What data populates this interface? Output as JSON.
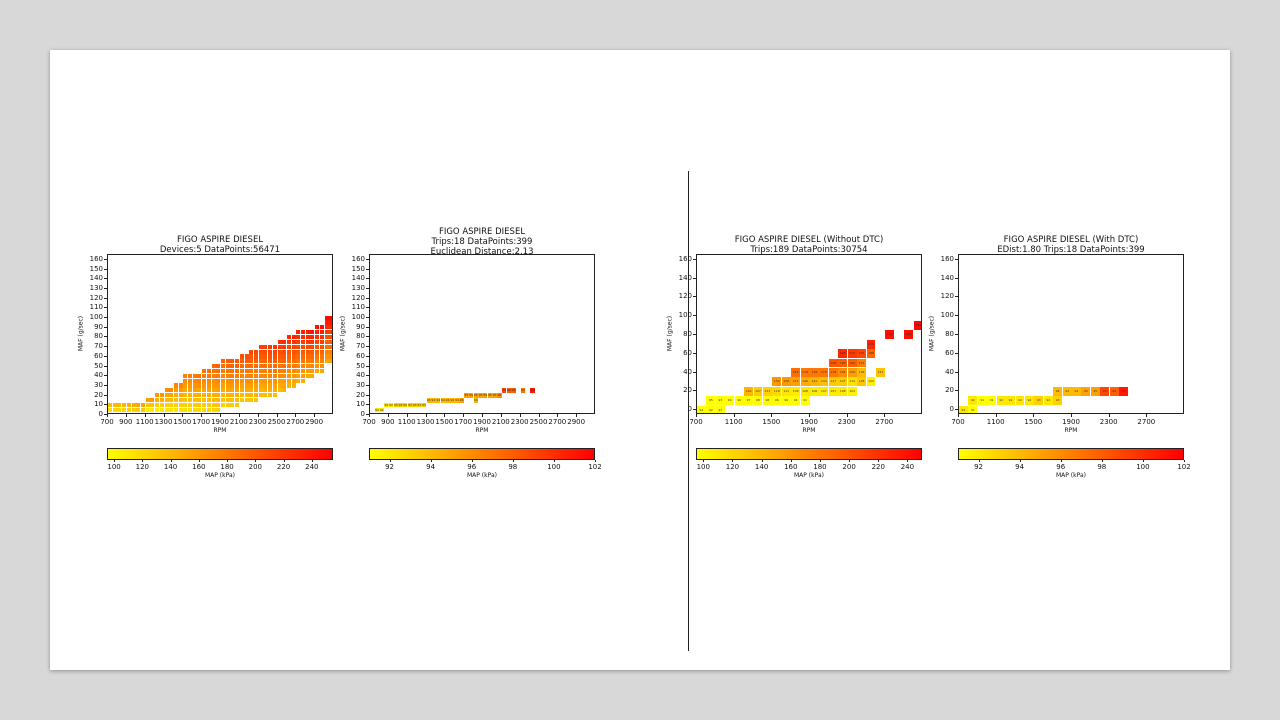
{
  "chart_data": [
    {
      "type": "heatmap",
      "title_lines": [
        "FIGO ASPIRE DIESEL",
        "Devices:5 DataPoints:56471"
      ],
      "xlabel": "RPM",
      "ylabel": "MAF (g/sec)",
      "xlim": [
        700,
        3100
      ],
      "ylim": [
        0,
        165
      ],
      "xticks": [
        700,
        900,
        1100,
        1300,
        1500,
        1700,
        1900,
        2100,
        2300,
        2500,
        2700,
        2900
      ],
      "yticks": [
        0,
        10,
        20,
        30,
        40,
        50,
        60,
        70,
        80,
        90,
        100,
        110,
        120,
        130,
        140,
        150,
        160
      ],
      "colorbar": {
        "label": "MAP (kPa)",
        "range": [
          95,
          255
        ],
        "ticks": [
          100,
          120,
          140,
          160,
          180,
          200,
          220,
          240
        ]
      },
      "cell_size": [
        50,
        5
      ],
      "pattern": "dense",
      "columns": [
        {
          "x": 700,
          "ymin": 0,
          "ymax": 10
        },
        {
          "x": 800,
          "ymin": 0,
          "ymax": 10
        },
        {
          "x": 900,
          "ymin": 0,
          "ymax": 10
        },
        {
          "x": 1000,
          "ymin": 0,
          "ymax": 10
        },
        {
          "x": 1100,
          "ymin": 5,
          "ymax": 15
        },
        {
          "x": 1200,
          "ymin": 5,
          "ymax": 20
        },
        {
          "x": 1300,
          "ymin": 5,
          "ymax": 25
        },
        {
          "x": 1400,
          "ymin": 5,
          "ymax": 30
        },
        {
          "x": 1500,
          "ymin": 5,
          "ymax": 40
        },
        {
          "x": 1600,
          "ymin": 5,
          "ymax": 40
        },
        {
          "x": 1700,
          "ymin": 5,
          "ymax": 45
        },
        {
          "x": 1800,
          "ymin": 5,
          "ymax": 50
        },
        {
          "x": 1900,
          "ymin": 10,
          "ymax": 55
        },
        {
          "x": 2000,
          "ymin": 10,
          "ymax": 55
        },
        {
          "x": 2100,
          "ymin": 15,
          "ymax": 60
        },
        {
          "x": 2200,
          "ymin": 15,
          "ymax": 65
        },
        {
          "x": 2300,
          "ymin": 20,
          "ymax": 70
        },
        {
          "x": 2400,
          "ymin": 20,
          "ymax": 70
        },
        {
          "x": 2500,
          "ymin": 25,
          "ymax": 75
        },
        {
          "x": 2600,
          "ymin": 30,
          "ymax": 80
        },
        {
          "x": 2700,
          "ymin": 35,
          "ymax": 85
        },
        {
          "x": 2800,
          "ymin": 40,
          "ymax": 85
        },
        {
          "x": 2900,
          "ymin": 45,
          "ymax": 90
        },
        {
          "x": 3000,
          "ymin": 55,
          "ymax": 100
        }
      ]
    },
    {
      "type": "heatmap",
      "title_lines": [
        "FIGO ASPIRE DIESEL",
        "Trips:18 DataPoints:399",
        "Euclidean Distance:2.13"
      ],
      "xlabel": "RPM",
      "ylabel": "MAF (g/sec)",
      "xlim": [
        700,
        3100
      ],
      "ylim": [
        0,
        165
      ],
      "xticks": [
        700,
        900,
        1100,
        1300,
        1500,
        1700,
        1900,
        2100,
        2300,
        2500,
        2700,
        2900
      ],
      "yticks": [
        0,
        10,
        20,
        30,
        40,
        50,
        60,
        70,
        80,
        90,
        100,
        110,
        120,
        130,
        140,
        150,
        160
      ],
      "colorbar": {
        "label": "MAP (kPa)",
        "range": [
          91,
          102
        ],
        "ticks": [
          92,
          94,
          96,
          98,
          100,
          102
        ]
      },
      "cell_size": [
        50,
        5
      ],
      "pattern": "points",
      "points": [
        {
          "x": 750,
          "y": 5,
          "v": 92
        },
        {
          "x": 800,
          "y": 5,
          "v": 92
        },
        {
          "x": 850,
          "y": 10,
          "v": 92
        },
        {
          "x": 900,
          "y": 10,
          "v": 92
        },
        {
          "x": 950,
          "y": 10,
          "v": 93
        },
        {
          "x": 1000,
          "y": 10,
          "v": 93
        },
        {
          "x": 1050,
          "y": 10,
          "v": 93
        },
        {
          "x": 1100,
          "y": 10,
          "v": 93
        },
        {
          "x": 1150,
          "y": 10,
          "v": 93
        },
        {
          "x": 1200,
          "y": 10,
          "v": 93
        },
        {
          "x": 1250,
          "y": 10,
          "v": 93
        },
        {
          "x": 1300,
          "y": 15,
          "v": 94
        },
        {
          "x": 1350,
          "y": 15,
          "v": 94
        },
        {
          "x": 1400,
          "y": 15,
          "v": 94
        },
        {
          "x": 1450,
          "y": 15,
          "v": 94
        },
        {
          "x": 1500,
          "y": 15,
          "v": 94
        },
        {
          "x": 1550,
          "y": 15,
          "v": 94
        },
        {
          "x": 1600,
          "y": 15,
          "v": 94
        },
        {
          "x": 1650,
          "y": 15,
          "v": 95
        },
        {
          "x": 1700,
          "y": 20,
          "v": 95
        },
        {
          "x": 1750,
          "y": 20,
          "v": 95
        },
        {
          "x": 1800,
          "y": 15,
          "v": 94
        },
        {
          "x": 1800,
          "y": 20,
          "v": 95
        },
        {
          "x": 1850,
          "y": 20,
          "v": 95
        },
        {
          "x": 1900,
          "y": 20,
          "v": 95
        },
        {
          "x": 1950,
          "y": 20,
          "v": 95
        },
        {
          "x": 2000,
          "y": 20,
          "v": 95
        },
        {
          "x": 2050,
          "y": 20,
          "v": 96
        },
        {
          "x": 2100,
          "y": 25,
          "v": 99
        },
        {
          "x": 2150,
          "y": 25,
          "v": 98
        },
        {
          "x": 2200,
          "y": 25,
          "v": 98
        },
        {
          "x": 2300,
          "y": 25,
          "v": 97
        },
        {
          "x": 2400,
          "y": 25,
          "v": 101
        }
      ]
    },
    {
      "type": "heatmap",
      "title_lines": [
        "FIGO ASPIRE DIESEL (Without DTC)",
        "Trips:189 DataPoints:30754"
      ],
      "xlabel": "RPM",
      "ylabel": "MAF (g/sec)",
      "xlim": [
        700,
        3100
      ],
      "ylim": [
        -5,
        165
      ],
      "xticks": [
        700,
        1100,
        1500,
        1900,
        2300,
        2700
      ],
      "yticks": [
        0,
        20,
        40,
        60,
        80,
        100,
        120,
        140,
        160
      ],
      "colorbar": {
        "label": "MAP (kPa)",
        "range": [
          95,
          250
        ],
        "ticks": [
          100,
          120,
          140,
          160,
          180,
          200,
          220,
          240
        ]
      },
      "cell_size": [
        100,
        10
      ],
      "pattern": "points",
      "points": [
        {
          "x": 700,
          "y": 0,
          "v": 92
        },
        {
          "x": 800,
          "y": 0,
          "v": 92
        },
        {
          "x": 900,
          "y": 0,
          "v": 91
        },
        {
          "x": 800,
          "y": 10,
          "v": 95
        },
        {
          "x": 900,
          "y": 10,
          "v": 93
        },
        {
          "x": 1000,
          "y": 10,
          "v": 94
        },
        {
          "x": 1100,
          "y": 10,
          "v": 96
        },
        {
          "x": 1200,
          "y": 10,
          "v": 97
        },
        {
          "x": 1300,
          "y": 10,
          "v": 98
        },
        {
          "x": 1400,
          "y": 10,
          "v": 98
        },
        {
          "x": 1500,
          "y": 10,
          "v": 96
        },
        {
          "x": 1600,
          "y": 10,
          "v": 96
        },
        {
          "x": 1700,
          "y": 10,
          "v": 94
        },
        {
          "x": 1800,
          "y": 10,
          "v": 91
        },
        {
          "x": 1200,
          "y": 20,
          "v": 140
        },
        {
          "x": 1300,
          "y": 20,
          "v": 127
        },
        {
          "x": 1400,
          "y": 20,
          "v": 123
        },
        {
          "x": 1500,
          "y": 20,
          "v": 118
        },
        {
          "x": 1600,
          "y": 20,
          "v": 111
        },
        {
          "x": 1700,
          "y": 20,
          "v": 108
        },
        {
          "x": 1800,
          "y": 20,
          "v": 108
        },
        {
          "x": 1900,
          "y": 20,
          "v": 106
        },
        {
          "x": 2000,
          "y": 20,
          "v": 107
        },
        {
          "x": 2100,
          "y": 20,
          "v": 107
        },
        {
          "x": 2200,
          "y": 20,
          "v": 108
        },
        {
          "x": 2300,
          "y": 20,
          "v": 103
        },
        {
          "x": 1500,
          "y": 30,
          "v": 159
        },
        {
          "x": 1600,
          "y": 30,
          "v": 158
        },
        {
          "x": 1700,
          "y": 30,
          "v": 152
        },
        {
          "x": 1800,
          "y": 30,
          "v": 146
        },
        {
          "x": 1900,
          "y": 30,
          "v": 141
        },
        {
          "x": 2000,
          "y": 30,
          "v": 134
        },
        {
          "x": 2100,
          "y": 30,
          "v": 127
        },
        {
          "x": 2200,
          "y": 30,
          "v": 127
        },
        {
          "x": 2300,
          "y": 30,
          "v": 113
        },
        {
          "x": 2400,
          "y": 30,
          "v": 128
        },
        {
          "x": 2500,
          "y": 30,
          "v": 104
        },
        {
          "x": 1700,
          "y": 40,
          "v": 183
        },
        {
          "x": 1800,
          "y": 40,
          "v": 178
        },
        {
          "x": 1900,
          "y": 40,
          "v": 178
        },
        {
          "x": 2000,
          "y": 40,
          "v": 178
        },
        {
          "x": 2100,
          "y": 40,
          "v": 178
        },
        {
          "x": 2200,
          "y": 40,
          "v": 165
        },
        {
          "x": 2300,
          "y": 40,
          "v": 156
        },
        {
          "x": 2400,
          "y": 40,
          "v": 136
        },
        {
          "x": 2600,
          "y": 40,
          "v": 131
        },
        {
          "x": 2100,
          "y": 50,
          "v": 198
        },
        {
          "x": 2200,
          "y": 50,
          "v": 194
        },
        {
          "x": 2300,
          "y": 50,
          "v": 192
        },
        {
          "x": 2400,
          "y": 50,
          "v": 172
        },
        {
          "x": 2300,
          "y": 60,
          "v": 215
        },
        {
          "x": 2400,
          "y": 60,
          "v": 207
        },
        {
          "x": 2500,
          "y": 60,
          "v": 188
        },
        {
          "x": 2200,
          "y": 60,
          "v": 226
        },
        {
          "x": 2500,
          "y": 70,
          "v": 228
        },
        {
          "x": 2700,
          "y": 80,
          "v": 240
        },
        {
          "x": 2900,
          "y": 80,
          "v": 242
        },
        {
          "x": 3000,
          "y": 90,
          "v": 246
        }
      ]
    },
    {
      "type": "heatmap",
      "title_lines": [
        "FIGO ASPIRE DIESEL (With DTC)",
        "EDist:1.80 Trips:18 DataPoints:399"
      ],
      "xlabel": "RPM",
      "ylabel": "MAF (g/sec)",
      "xlim": [
        700,
        3100
      ],
      "ylim": [
        -5,
        165
      ],
      "xticks": [
        700,
        1100,
        1500,
        1900,
        2300,
        2700
      ],
      "yticks": [
        0,
        20,
        40,
        60,
        80,
        100,
        120,
        140,
        160
      ],
      "colorbar": {
        "label": "MAP (kPa)",
        "range": [
          91,
          102
        ],
        "ticks": [
          92,
          94,
          96,
          98,
          100,
          102
        ]
      },
      "cell_size": [
        100,
        10
      ],
      "pattern": "points",
      "points": [
        {
          "x": 700,
          "y": 0,
          "v": 92
        },
        {
          "x": 800,
          "y": 0,
          "v": 91
        },
        {
          "x": 800,
          "y": 10,
          "v": 92
        },
        {
          "x": 900,
          "y": 10,
          "v": 91
        },
        {
          "x": 1000,
          "y": 10,
          "v": 91
        },
        {
          "x": 1100,
          "y": 10,
          "v": 92
        },
        {
          "x": 1200,
          "y": 10,
          "v": 92
        },
        {
          "x": 1300,
          "y": 10,
          "v": 92
        },
        {
          "x": 1400,
          "y": 10,
          "v": 92
        },
        {
          "x": 1500,
          "y": 10,
          "v": 93
        },
        {
          "x": 1600,
          "y": 10,
          "v": 92
        },
        {
          "x": 1700,
          "y": 10,
          "v": 93
        },
        {
          "x": 1700,
          "y": 20,
          "v": 94
        },
        {
          "x": 1800,
          "y": 20,
          "v": 94
        },
        {
          "x": 1900,
          "y": 20,
          "v": 94
        },
        {
          "x": 2000,
          "y": 20,
          "v": 95
        },
        {
          "x": 2100,
          "y": 20,
          "v": 95
        },
        {
          "x": 2200,
          "y": 20,
          "v": 99
        },
        {
          "x": 2300,
          "y": 20,
          "v": 98
        },
        {
          "x": 2400,
          "y": 20,
          "v": 101
        }
      ]
    }
  ]
}
